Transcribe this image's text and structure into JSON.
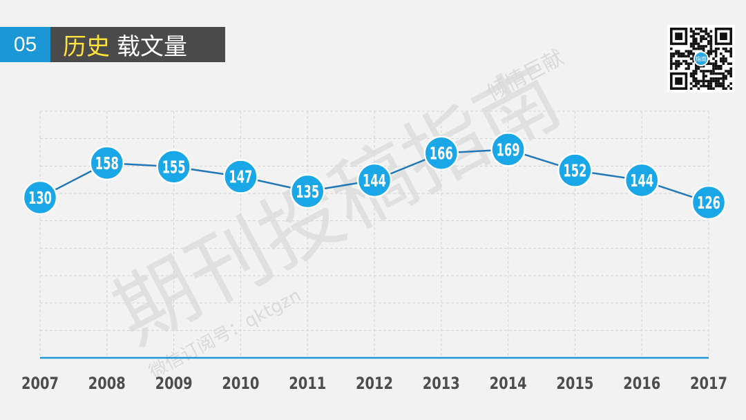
{
  "header": {
    "number": "05",
    "title_highlight": "历史",
    "title_rest": "载文量"
  },
  "watermark": {
    "main": "期刊投稿指南",
    "small_top": "倾情巨献",
    "small_bottom": "微信订阅号：qktgzn"
  },
  "qr_center_text": "指南",
  "colors": {
    "accent": "#1c97d6",
    "marker": "#1aa7e8",
    "line": "#2178b8",
    "title_highlight": "#ffe33a",
    "title_bg": "#4a4a4a",
    "axis_label": "#4d4d4d"
  },
  "chart_data": {
    "type": "line",
    "categories": [
      "2007",
      "2008",
      "2009",
      "2010",
      "2011",
      "2012",
      "2013",
      "2014",
      "2015",
      "2016",
      "2017"
    ],
    "series": [
      {
        "values": [
          130,
          158,
          155,
          147,
          135,
          144,
          166,
          169,
          152,
          144,
          126
        ]
      }
    ],
    "data_labels": true,
    "grid": true,
    "ylim": [
      0,
      200
    ]
  }
}
